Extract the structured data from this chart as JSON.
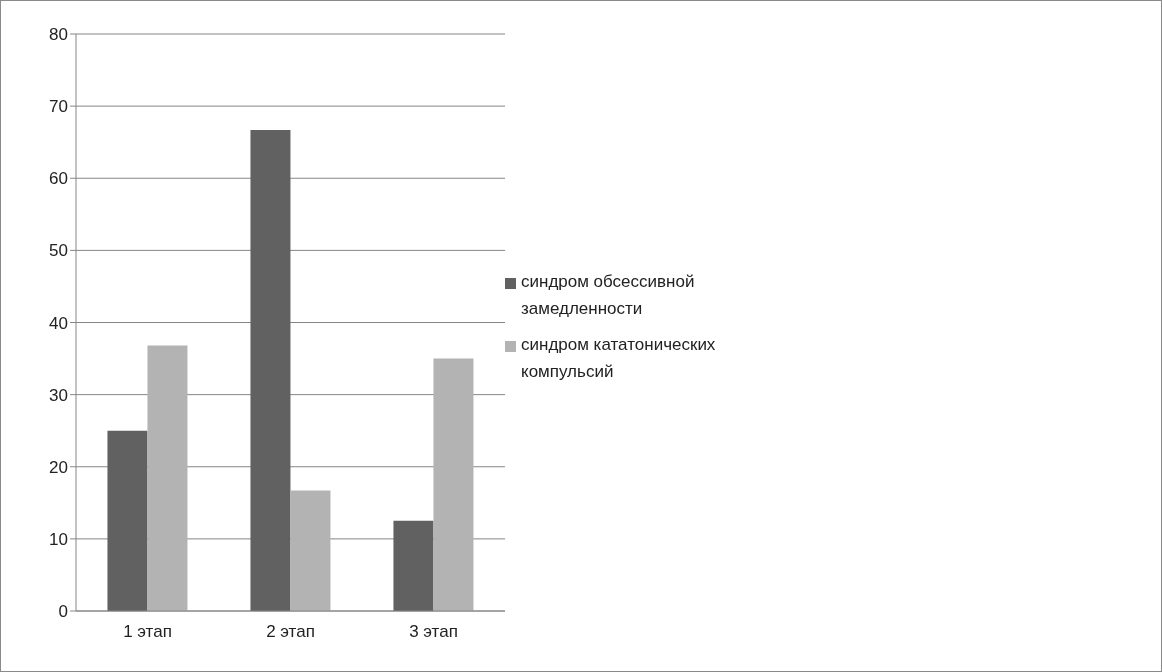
{
  "chart_data": {
    "type": "bar",
    "categories": [
      "1 этап",
      "2 этап",
      "3 этап"
    ],
    "series": [
      {
        "name": "синдром обсессивной замедленности",
        "color": "#616161",
        "values": [
          25,
          66.7,
          12.5
        ]
      },
      {
        "name": "синдром кататонических компульсий",
        "color": "#b3b3b3",
        "values": [
          36.8,
          16.7,
          35
        ]
      }
    ],
    "ylim": [
      0,
      80
    ],
    "yticks": [
      0,
      10,
      20,
      30,
      40,
      50,
      60,
      70,
      80
    ],
    "grid": "y",
    "legend": "right"
  }
}
